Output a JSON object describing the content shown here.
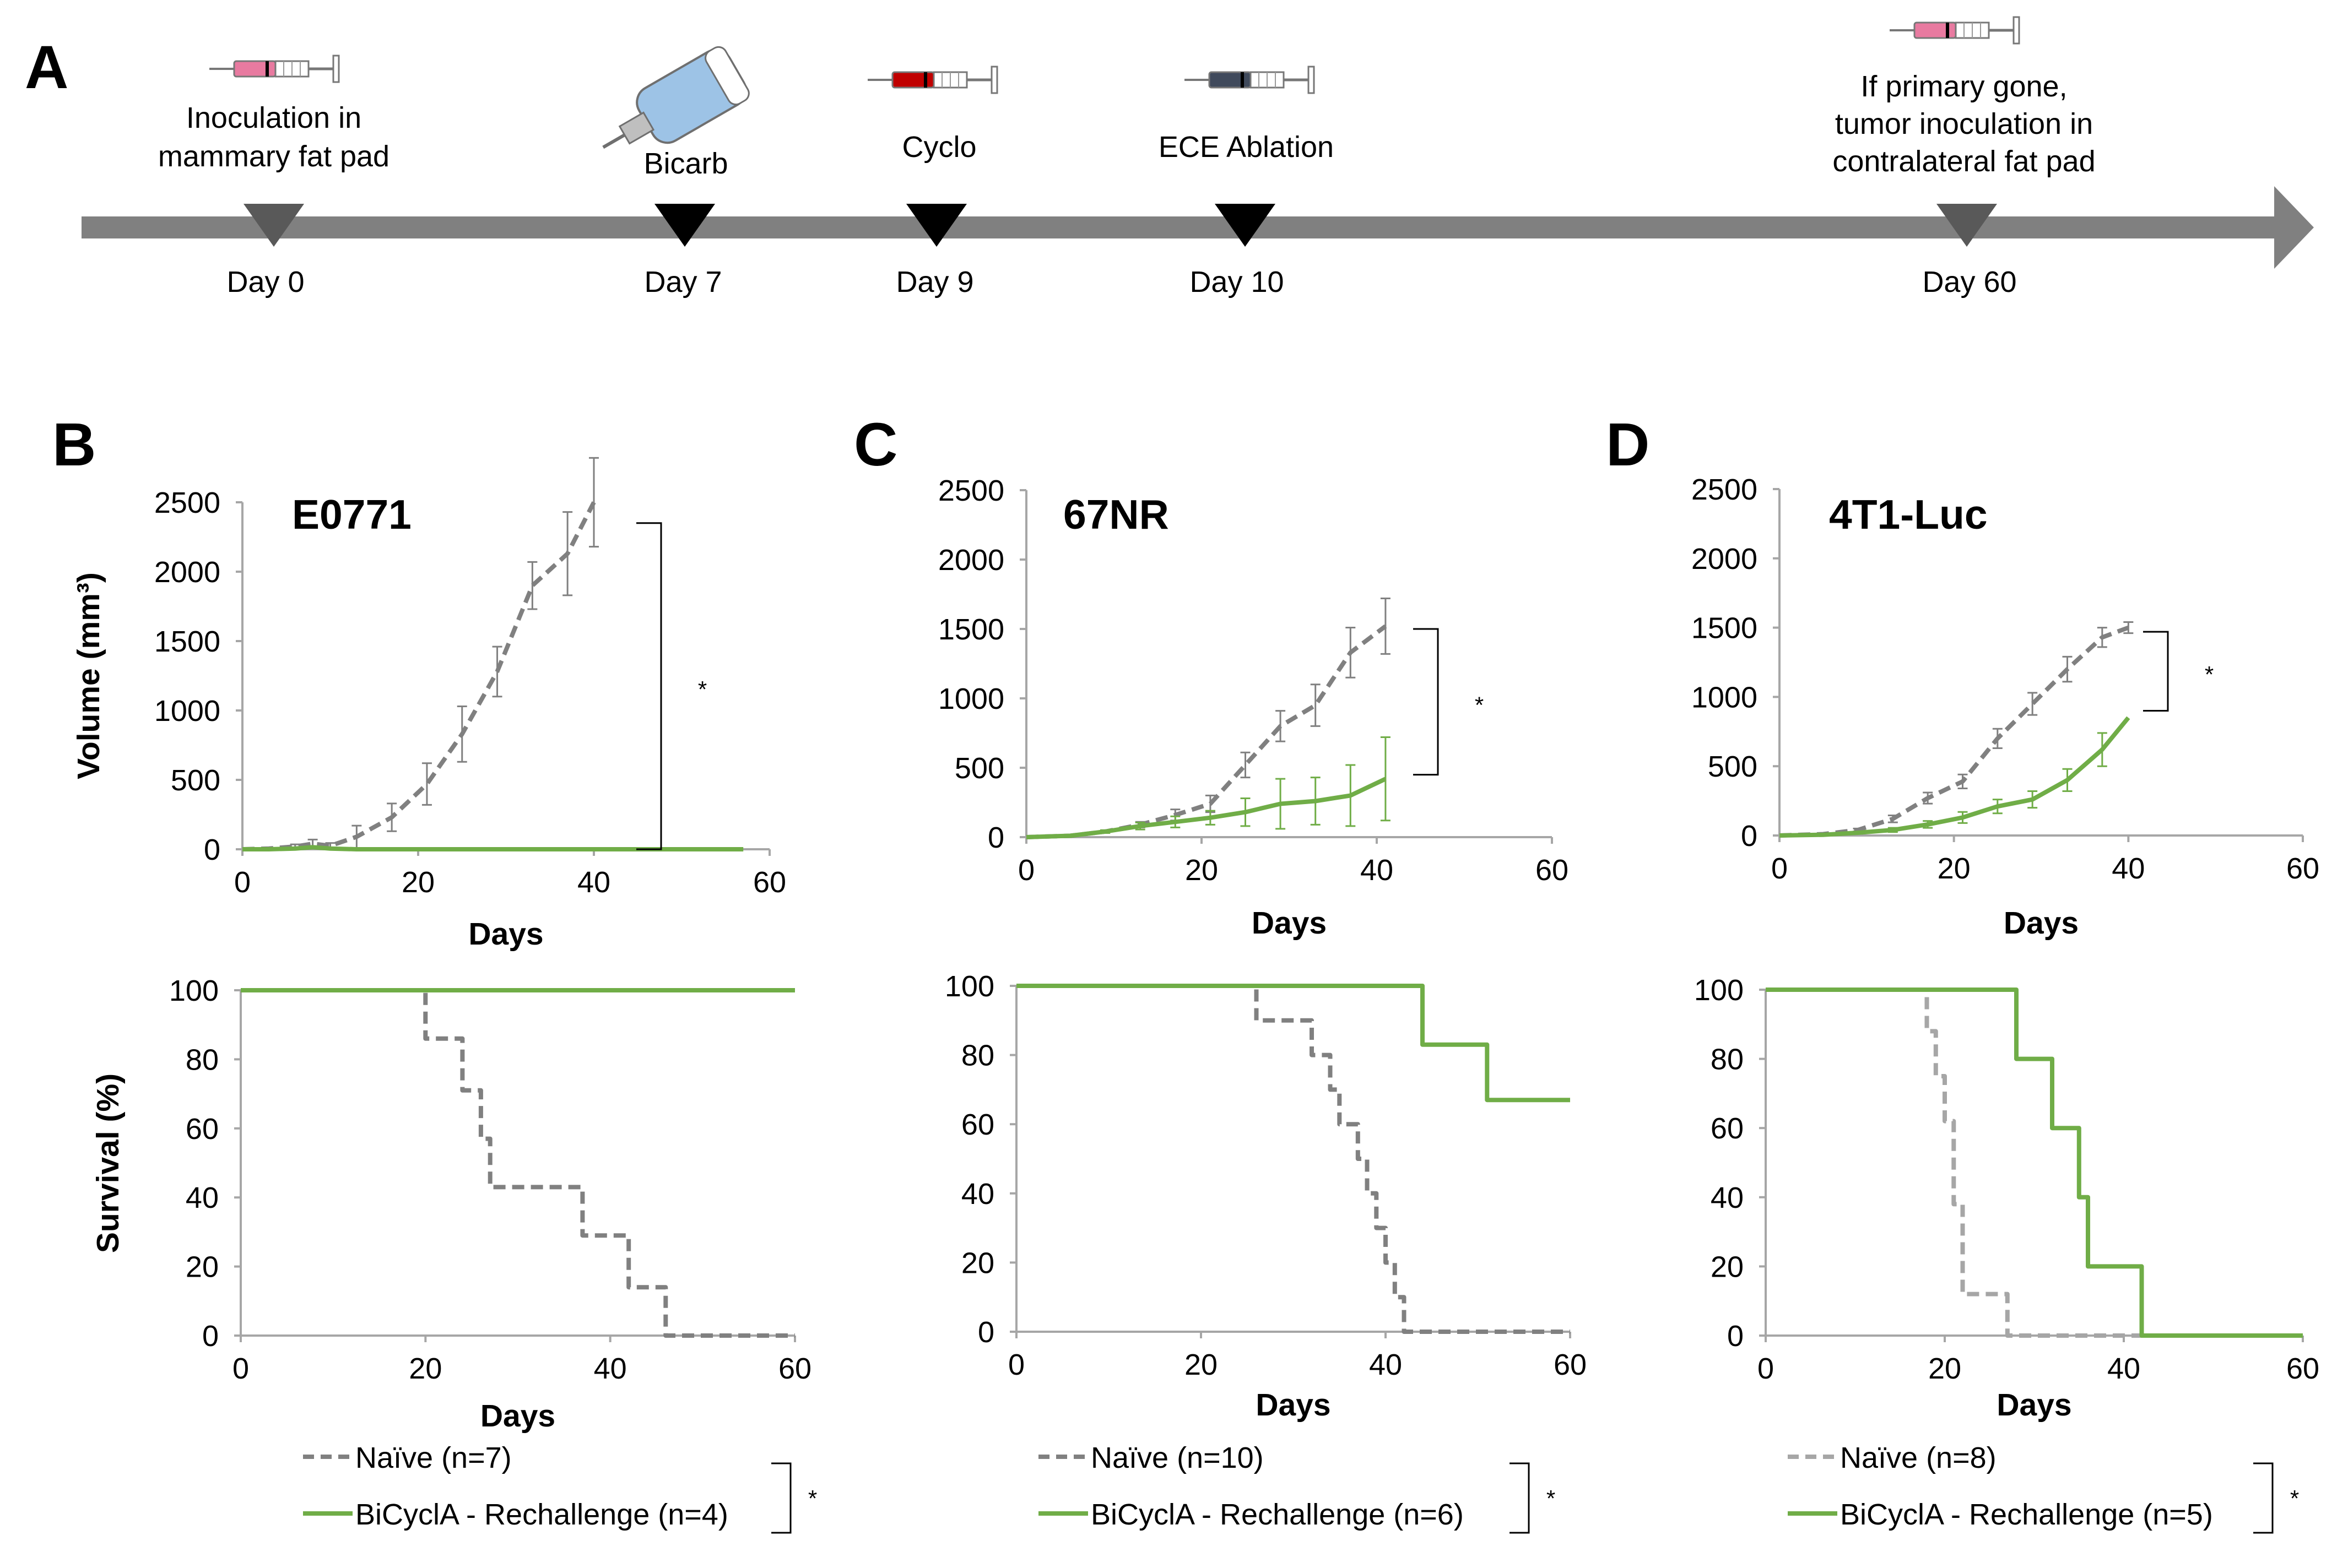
{
  "timeline": {
    "panel_label": "A",
    "events": [
      {
        "day_label": "Day 0",
        "text": [
          "Inoculation in",
          "mammary fat pad"
        ],
        "icon": "syringe-pink-icon"
      },
      {
        "day_label": "Day 7",
        "text": [
          "Bicarb"
        ],
        "icon": "water-bottle-icon"
      },
      {
        "day_label": "Day 9",
        "text": [
          "Cyclo"
        ],
        "icon": "syringe-red-icon"
      },
      {
        "day_label": "Day 10",
        "text": [
          "ECE Ablation"
        ],
        "icon": "syringe-dark-icon"
      },
      {
        "day_label": "Day 60",
        "text": [
          "If primary gone,",
          "tumor inoculation in",
          "contralateral fat pad"
        ],
        "icon": "syringe-pink-icon"
      }
    ]
  },
  "colors": {
    "naive": "#808080",
    "naive_light": "#a6a6a6",
    "bicyclA": "#70ad47",
    "axis": "#a6a6a6",
    "timeline": "#808080"
  },
  "chart_data": [
    {
      "panel_label": "B",
      "type": "line",
      "title": "E0771",
      "xlabel": "Days",
      "ylabel": "Volume (mm³)",
      "xlim": [
        0,
        60
      ],
      "ylim": [
        0,
        2500
      ],
      "xticks": [
        0,
        20,
        40,
        60
      ],
      "yticks": [
        0,
        500,
        1000,
        1500,
        2000,
        2500
      ],
      "significance": "*",
      "sig_range": [
        0,
        2350
      ],
      "series": [
        {
          "name": "Naïve",
          "style": "dashed",
          "x": [
            0,
            3,
            6,
            8,
            10,
            13,
            17,
            21,
            25,
            29,
            33,
            37,
            40
          ],
          "y": [
            0,
            5,
            20,
            40,
            25,
            90,
            230,
            470,
            830,
            1280,
            1900,
            2130,
            2500
          ],
          "err": [
            0,
            5,
            15,
            30,
            20,
            80,
            100,
            150,
            200,
            180,
            170,
            300,
            320
          ]
        },
        {
          "name": "BiCyclA - Rechallenge",
          "style": "solid",
          "x": [
            0,
            3,
            6,
            8,
            10,
            13,
            17,
            21,
            25,
            29,
            33,
            37,
            40,
            45,
            50,
            57
          ],
          "y": [
            0,
            0,
            5,
            15,
            5,
            0,
            0,
            0,
            0,
            0,
            0,
            0,
            0,
            0,
            0,
            0
          ]
        }
      ]
    },
    {
      "panel_label": "C",
      "type": "line",
      "title": "67NR",
      "xlabel": "Days",
      "ylabel": "",
      "xlim": [
        0,
        60
      ],
      "ylim": [
        0,
        2500
      ],
      "xticks": [
        0,
        20,
        40,
        60
      ],
      "yticks": [
        0,
        500,
        1000,
        1500,
        2000,
        2500
      ],
      "significance": "*",
      "sig_range": [
        450,
        1500
      ],
      "series": [
        {
          "name": "Naïve",
          "style": "dashed",
          "x": [
            0,
            5,
            9,
            13,
            17,
            21,
            25,
            29,
            33,
            37,
            41
          ],
          "y": [
            0,
            10,
            40,
            90,
            160,
            240,
            520,
            800,
            950,
            1330,
            1520
          ],
          "err": [
            0,
            5,
            10,
            20,
            40,
            60,
            90,
            110,
            150,
            180,
            200
          ]
        },
        {
          "name": "BiCyclA - Rechallenge",
          "style": "solid",
          "x": [
            0,
            5,
            9,
            13,
            17,
            21,
            25,
            29,
            33,
            37,
            41
          ],
          "y": [
            0,
            10,
            40,
            80,
            110,
            140,
            180,
            240,
            260,
            300,
            420
          ],
          "err": [
            0,
            5,
            10,
            25,
            40,
            50,
            100,
            180,
            170,
            220,
            300
          ]
        }
      ]
    },
    {
      "panel_label": "D",
      "type": "line",
      "title": "4T1-Luc",
      "xlabel": "Days",
      "ylabel": "",
      "xlim": [
        0,
        60
      ],
      "ylim": [
        0,
        2500
      ],
      "xticks": [
        0,
        20,
        40,
        60
      ],
      "yticks": [
        0,
        500,
        1000,
        1500,
        2000,
        2500
      ],
      "significance": "*",
      "sig_range": [
        900,
        1470
      ],
      "series": [
        {
          "name": "Naïve",
          "style": "dashed",
          "x": [
            0,
            5,
            9,
            13,
            17,
            21,
            25,
            29,
            33,
            37,
            40
          ],
          "y": [
            0,
            10,
            40,
            120,
            270,
            390,
            700,
            950,
            1200,
            1430,
            1500
          ],
          "err": [
            0,
            5,
            10,
            25,
            40,
            50,
            70,
            80,
            90,
            70,
            40
          ]
        },
        {
          "name": "BiCyclA - Rechallenge",
          "style": "solid",
          "x": [
            0,
            5,
            9,
            13,
            17,
            21,
            25,
            29,
            33,
            37,
            40
          ],
          "y": [
            0,
            5,
            20,
            40,
            80,
            130,
            210,
            260,
            400,
            620,
            850
          ],
          "err": [
            0,
            3,
            8,
            15,
            25,
            40,
            50,
            60,
            80,
            120,
            0
          ]
        }
      ]
    },
    {
      "panel_label": "",
      "type": "line",
      "title": "",
      "xlabel": "Days",
      "ylabel": "Survival (%)",
      "xlim": [
        0,
        60
      ],
      "ylim": [
        0,
        100
      ],
      "xticks": [
        0,
        20,
        40,
        60
      ],
      "yticks": [
        0,
        20,
        40,
        60,
        80,
        100
      ],
      "series": [
        {
          "name": "Naïve",
          "style": "dashed",
          "x": [
            0,
            20,
            20,
            24,
            24,
            26,
            26,
            27,
            27,
            37,
            37,
            42,
            42,
            46,
            46,
            60
          ],
          "y": [
            100,
            100,
            86,
            86,
            71,
            71,
            57,
            57,
            43,
            43,
            29,
            29,
            14,
            14,
            0,
            0
          ]
        },
        {
          "name": "BiCyclA - Rechallenge",
          "style": "solid",
          "x": [
            0,
            60
          ],
          "y": [
            100,
            100
          ]
        }
      ]
    },
    {
      "panel_label": "",
      "type": "line",
      "title": "",
      "xlabel": "Days",
      "ylabel": "",
      "xlim": [
        0,
        60
      ],
      "ylim": [
        0,
        100
      ],
      "xticks": [
        0,
        20,
        40,
        60
      ],
      "yticks": [
        0,
        20,
        40,
        60,
        80,
        100
      ],
      "series": [
        {
          "name": "Naïve",
          "style": "dashed",
          "x": [
            0,
            26,
            26,
            32,
            32,
            34,
            34,
            35,
            35,
            37,
            37,
            38,
            38,
            39,
            39,
            40,
            40,
            41,
            41,
            42,
            42,
            60
          ],
          "y": [
            100,
            100,
            90,
            90,
            80,
            80,
            70,
            70,
            60,
            60,
            50,
            50,
            40,
            40,
            30,
            30,
            20,
            20,
            10,
            10,
            0,
            0
          ]
        },
        {
          "name": "BiCyclA - Rechallenge",
          "style": "solid",
          "x": [
            0,
            44,
            44,
            51,
            51,
            60
          ],
          "y": [
            100,
            100,
            83,
            83,
            67,
            67
          ]
        }
      ]
    },
    {
      "panel_label": "",
      "type": "line",
      "title": "",
      "xlabel": "Days",
      "ylabel": "",
      "xlim": [
        0,
        60
      ],
      "ylim": [
        0,
        100
      ],
      "xticks": [
        0,
        20,
        40,
        60
      ],
      "yticks": [
        0,
        20,
        40,
        60,
        80,
        100
      ],
      "series": [
        {
          "name": "Naïve",
          "style": "dashed",
          "light": true,
          "x": [
            0,
            18,
            18,
            19,
            19,
            20,
            20,
            21,
            21,
            22,
            22,
            27,
            27,
            60
          ],
          "y": [
            100,
            100,
            88,
            88,
            75,
            75,
            62,
            62,
            38,
            38,
            12,
            12,
            0,
            0
          ]
        },
        {
          "name": "BiCyclA - Rechallenge",
          "style": "solid",
          "x": [
            0,
            28,
            28,
            32,
            32,
            35,
            35,
            36,
            36,
            42,
            42,
            60
          ],
          "y": [
            100,
            100,
            80,
            80,
            60,
            60,
            40,
            40,
            20,
            20,
            0,
            0
          ]
        }
      ]
    }
  ],
  "legends": [
    {
      "naive": "Naïve (n=7)",
      "bicyclA": "BiCyclA - Rechallenge (n=4)",
      "significance": "*"
    },
    {
      "naive": "Naïve (n=10)",
      "bicyclA": "BiCyclA - Rechallenge (n=6)",
      "significance": "*"
    },
    {
      "naive": "Naïve (n=8)",
      "bicyclA": "BiCyclA - Rechallenge (n=5)",
      "significance": "*"
    }
  ]
}
